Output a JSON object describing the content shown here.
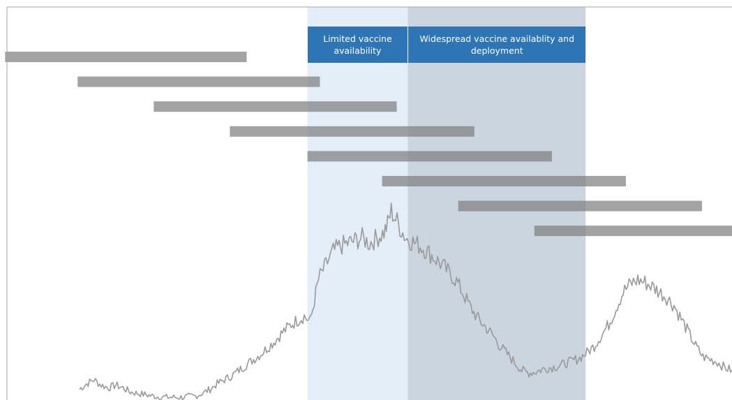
{
  "chart_data": {
    "type": "line",
    "title": "",
    "xlabel": "",
    "ylabel": "",
    "grid": false,
    "legend": "none",
    "x_range": [
      0,
      100
    ],
    "y_range": [
      0,
      100
    ],
    "phases": [
      {
        "label": "Limited vaccine availability",
        "start": 42.0,
        "end": 55.7,
        "shade_color": "#e4eef8",
        "label_color": "#2e75b6"
      },
      {
        "label": "Widespread vaccine availablity and deployment",
        "start": 55.7,
        "end": 80.0,
        "shade_color": "#cbd5e0",
        "label_color": "#2e75b6"
      }
    ],
    "intervals": [
      {
        "start": 0.7,
        "end": 33.7
      },
      {
        "start": 10.6,
        "end": 43.7
      },
      {
        "start": 21.0,
        "end": 54.2
      },
      {
        "start": 31.4,
        "end": 64.8
      },
      {
        "start": 42.0,
        "end": 75.4
      },
      {
        "start": 52.2,
        "end": 85.5
      },
      {
        "start": 62.6,
        "end": 95.9
      },
      {
        "start": 73.0,
        "end": 100.0
      }
    ],
    "series": [
      {
        "color": "#999999",
        "interval_color": "#808080",
        "x": [
          10,
          11,
          12,
          13,
          14,
          15,
          16,
          17,
          18,
          20,
          22,
          24,
          26,
          27,
          28,
          29,
          30,
          31,
          32,
          33,
          34,
          35,
          36,
          37,
          38,
          39,
          40,
          41,
          41.8,
          42.2,
          43,
          44,
          45,
          46,
          47,
          48,
          49,
          50,
          51,
          52,
          52.5,
          53,
          53.4,
          53.8,
          54.2,
          55,
          56,
          57,
          58,
          59,
          60,
          61,
          62,
          63,
          64,
          65,
          66,
          67,
          68,
          69,
          70,
          71,
          72,
          73,
          74,
          75,
          76,
          77,
          78,
          79,
          80,
          81,
          82,
          83,
          84,
          85,
          86,
          87,
          88,
          89,
          90,
          91,
          92,
          93,
          94,
          95,
          96,
          97,
          98,
          99,
          100
        ],
        "y": [
          4,
          6,
          7.5,
          5.5,
          4.5,
          5.5,
          4.5,
          3,
          2.5,
          1.5,
          1,
          1,
          1.5,
          2.5,
          4,
          6,
          7.5,
          9,
          11,
          13,
          15,
          17,
          19.5,
          22,
          25,
          27.5,
          29.5,
          31,
          29,
          34,
          45,
          50,
          55,
          57,
          58,
          59,
          60,
          58,
          60,
          62,
          65,
          70,
          68,
          66,
          64,
          60,
          58.5,
          57,
          55,
          52.5,
          50,
          47,
          44,
          39,
          34,
          30,
          27,
          24,
          20,
          17,
          14,
          11,
          10,
          10.5,
          11.5,
          12,
          12.5,
          13.5,
          14.5,
          15.5,
          17.5,
          20,
          24,
          28,
          34,
          40,
          43,
          44.5,
          43.5,
          42,
          40,
          38,
          35,
          30,
          25,
          20,
          16,
          15,
          14,
          12,
          11
        ]
      }
    ]
  }
}
